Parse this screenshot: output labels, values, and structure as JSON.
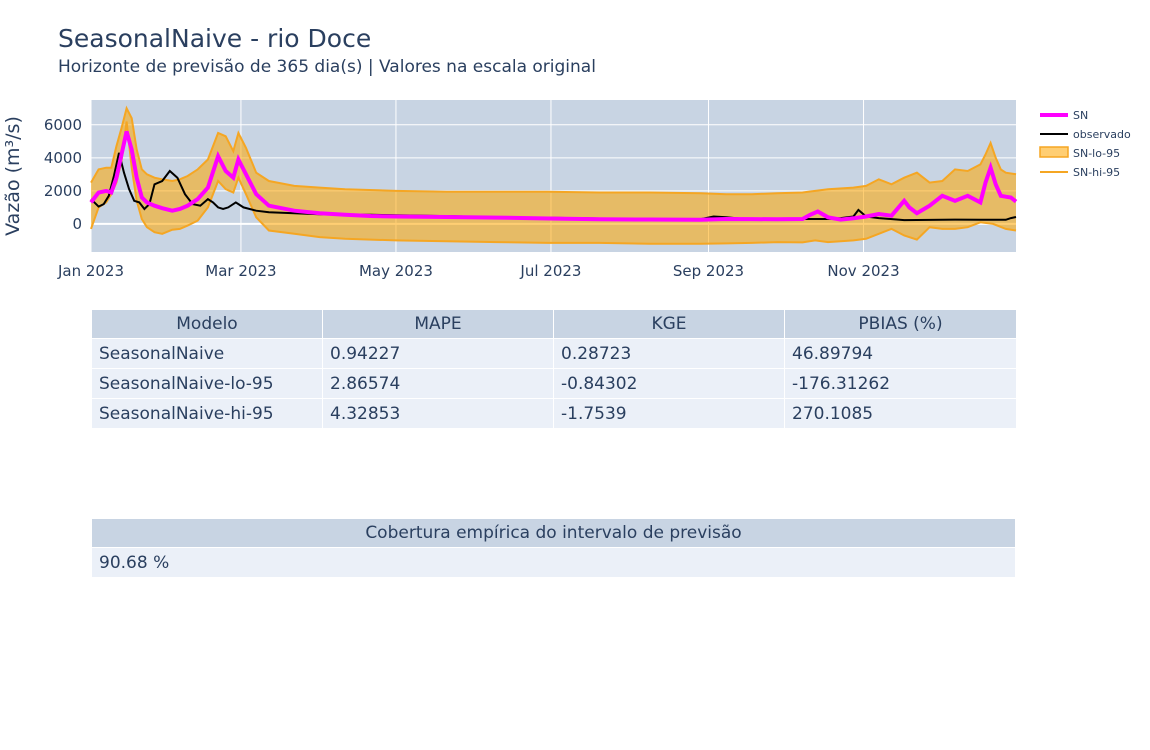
{
  "title": "SeasonalNaive - rio Doce",
  "subtitle": "Horizonte de previsão de 365 dia(s) | Valores na escala original",
  "colors": {
    "plot_bg": "#c8d4e3",
    "sn": "#ff00ff",
    "observed": "#000000",
    "band": "#f5a623",
    "band_fill": "rgba(255,165,0,0.55)",
    "header_bg": "#c8d4e3",
    "cell_bg": "#ebf0f8"
  },
  "chart_data": {
    "type": "line",
    "ylabel": "Vazão (m³/s)",
    "xlabel": "",
    "x_ticks": [
      "Jan 2023",
      "Mar 2023",
      "May 2023",
      "Jul 2023",
      "Sep 2023",
      "Nov 2023"
    ],
    "x_tick_days": [
      0,
      59,
      120,
      181,
      243,
      304
    ],
    "y_ticks": [
      0,
      2000,
      4000,
      6000
    ],
    "xlim_days": [
      0,
      364
    ],
    "ylim": [
      -1700,
      7500
    ],
    "legend_position": "right",
    "grid": true,
    "series": [
      {
        "name": "SN",
        "color": "#ff00ff",
        "days": [
          0,
          3,
          6,
          8,
          10,
          12,
          14,
          16,
          18,
          20,
          22,
          25,
          28,
          32,
          35,
          38,
          42,
          46,
          50,
          53,
          56,
          58,
          61,
          65,
          70,
          80,
          90,
          100,
          110,
          120,
          140,
          160,
          180,
          200,
          220,
          240,
          250,
          260,
          270,
          280,
          283,
          286,
          290,
          295,
          300,
          305,
          310,
          315,
          320,
          322,
          325,
          330,
          335,
          340,
          345,
          350,
          352,
          354,
          356,
          358,
          360,
          362,
          364
        ],
        "values": [
          1300,
          1900,
          2000,
          1900,
          2800,
          4200,
          5600,
          4500,
          2800,
          1600,
          1300,
          1100,
          950,
          800,
          900,
          1100,
          1500,
          2200,
          4100,
          3200,
          2800,
          3900,
          3000,
          1800,
          1100,
          800,
          650,
          550,
          480,
          450,
          420,
          380,
          330,
          280,
          270,
          250,
          300,
          290,
          280,
          300,
          550,
          750,
          400,
          260,
          340,
          450,
          600,
          500,
          1400,
          1000,
          650,
          1100,
          1700,
          1400,
          1700,
          1300,
          2500,
          3400,
          2400,
          1700,
          1650,
          1600,
          1350
        ]
      },
      {
        "name": "observado",
        "color": "#000000",
        "days": [
          0,
          3,
          5,
          7,
          9,
          11,
          13,
          15,
          17,
          19,
          21,
          23,
          25,
          28,
          31,
          34,
          37,
          40,
          43,
          46,
          48,
          50,
          52,
          54,
          57,
          60,
          65,
          70,
          80,
          90,
          100,
          110,
          120,
          140,
          160,
          180,
          200,
          220,
          240,
          245,
          250,
          260,
          270,
          280,
          290,
          295,
          300,
          302,
          305,
          310,
          320,
          330,
          340,
          350,
          360,
          362,
          364
        ],
        "values": [
          1500,
          1050,
          1200,
          1700,
          2900,
          4300,
          3100,
          2100,
          1400,
          1300,
          900,
          1200,
          2400,
          2600,
          3200,
          2800,
          1800,
          1200,
          1100,
          1500,
          1300,
          1000,
          900,
          1000,
          1300,
          1000,
          800,
          700,
          640,
          580,
          560,
          550,
          530,
          470,
          400,
          370,
          330,
          300,
          290,
          450,
          400,
          250,
          250,
          300,
          300,
          350,
          450,
          850,
          450,
          350,
          230,
          240,
          260,
          250,
          250,
          350,
          420
        ]
      },
      {
        "name": "SN-lo-95",
        "color": "#f5a623",
        "days": [
          0,
          3,
          6,
          8,
          10,
          12,
          14,
          16,
          18,
          20,
          22,
          25,
          28,
          32,
          35,
          38,
          42,
          46,
          50,
          53,
          56,
          58,
          61,
          65,
          70,
          80,
          90,
          100,
          120,
          140,
          160,
          180,
          200,
          220,
          240,
          250,
          260,
          270,
          280,
          285,
          290,
          300,
          305,
          310,
          315,
          320,
          325,
          330,
          335,
          340,
          345,
          350,
          355,
          360,
          364
        ],
        "values": [
          -300,
          1000,
          1300,
          1800,
          2500,
          3800,
          6200,
          3400,
          1400,
          300,
          -200,
          -500,
          -600,
          -350,
          -300,
          -100,
          200,
          1000,
          2600,
          2100,
          1900,
          2800,
          1800,
          400,
          -400,
          -600,
          -800,
          -900,
          -1000,
          -1050,
          -1100,
          -1150,
          -1150,
          -1200,
          -1200,
          -1180,
          -1150,
          -1100,
          -1120,
          -1000,
          -1100,
          -1000,
          -900,
          -600,
          -300,
          -700,
          -950,
          -200,
          -300,
          -300,
          -200,
          100,
          0,
          -300,
          -400
        ]
      },
      {
        "name": "SN-hi-95",
        "color": "#f5a623",
        "days": [
          0,
          3,
          6,
          8,
          10,
          12,
          14,
          16,
          18,
          20,
          22,
          25,
          28,
          32,
          35,
          38,
          42,
          46,
          50,
          53,
          56,
          58,
          61,
          65,
          70,
          80,
          90,
          100,
          120,
          140,
          160,
          180,
          200,
          220,
          240,
          250,
          260,
          270,
          280,
          285,
          290,
          300,
          305,
          310,
          315,
          320,
          325,
          330,
          335,
          340,
          345,
          350,
          352,
          354,
          356,
          358,
          360,
          364
        ],
        "values": [
          2500,
          3300,
          3400,
          3400,
          4700,
          5800,
          7000,
          6400,
          4500,
          3300,
          3000,
          2800,
          2700,
          2600,
          2700,
          2900,
          3300,
          3900,
          5500,
          5300,
          4400,
          5500,
          4600,
          3100,
          2600,
          2300,
          2200,
          2100,
          2000,
          1950,
          1950,
          1950,
          1900,
          1900,
          1850,
          1800,
          1800,
          1850,
          1900,
          2000,
          2100,
          2200,
          2300,
          2700,
          2400,
          2800,
          3100,
          2500,
          2600,
          3300,
          3200,
          3600,
          4200,
          4900,
          4000,
          3300,
          3100,
          3000
        ]
      }
    ]
  },
  "metrics_table": {
    "headers": [
      "Modelo",
      "MAPE",
      "KGE",
      "PBIAS (%)"
    ],
    "rows": [
      [
        "SeasonalNaive",
        "0.94227",
        "0.28723",
        "46.89794"
      ],
      [
        "SeasonalNaive-lo-95",
        "2.86574",
        "-0.84302",
        "-176.31262"
      ],
      [
        "SeasonalNaive-hi-95",
        "4.32853",
        "-1.7539",
        "270.1085"
      ]
    ]
  },
  "coverage_table": {
    "header": "Cobertura empírica do intervalo de previsão",
    "value": "90.68 %"
  }
}
